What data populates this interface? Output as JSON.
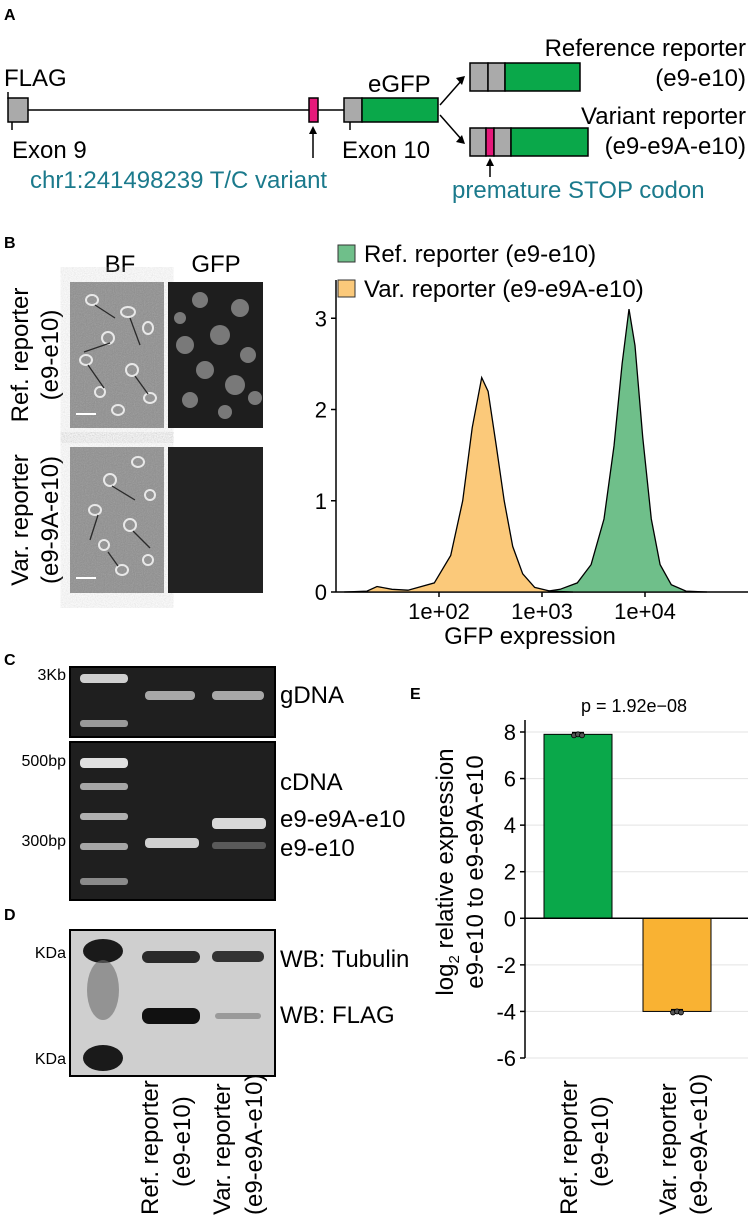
{
  "panels": {
    "a": {
      "letter": "A",
      "flag": "FLAG",
      "exon9": "Exon 9",
      "exon10": "Exon 10",
      "egfp": "eGFP",
      "variant_position": "chr1:241498239 T/C variant",
      "ref_reporter_line1": "Reference reporter",
      "ref_reporter_line2": "(e9-e10)",
      "var_reporter_line1": "Variant reporter",
      "var_reporter_line2": "(e9-e9A-e10)",
      "stop_label": "premature STOP codon"
    },
    "b": {
      "letter": "B",
      "col_bf": "BF",
      "col_gfp": "GFP",
      "row1_line1": "Ref. reporter",
      "row1_line2": "(e9-e10)",
      "row2_line1": "Var. reporter",
      "row2_line2": "(e9-9A-e10)"
    },
    "c": {
      "letter": "C",
      "marker_3kb": "3Kb",
      "marker_500bp": "500bp",
      "marker_300bp": "300bp",
      "gdna": "gDNA",
      "cdna": "cDNA",
      "band_var": "e9-e9A-e10",
      "band_ref": "e9-e10"
    },
    "d": {
      "letter": "D",
      "kda_top": "KDa",
      "kda_bottom": "KDa",
      "wb_tubulin": "WB: Tubulin",
      "wb_flag": "WB: FLAG",
      "lane1_line1": "Ref. reporter",
      "lane1_line2": "(e9-e10)",
      "lane2_line1": "Var. reporter",
      "lane2_line2": "(e9-e9A-e10)"
    },
    "e": {
      "letter": "E"
    }
  },
  "colors": {
    "green": "#0aa84a",
    "green_light": "#6fbf8a",
    "orange": "#f9b233",
    "orange_light": "#fbc97a",
    "magenta": "#e5197a",
    "teal": "#1b7a8c",
    "exon_gray": "#aaaaaa"
  },
  "chart_data": [
    {
      "type": "area",
      "panel": "B",
      "xlabel": "GFP expression",
      "xscale": "log",
      "xlim": [
        10,
        100000
      ],
      "ylim": [
        0,
        3.2
      ],
      "x_ticks": [
        "1e+02",
        "1e+03",
        "1e+04"
      ],
      "x_tick_values": [
        100,
        1000,
        10000
      ],
      "y_ticks": [
        "0",
        "1",
        "2",
        "3"
      ],
      "y_tick_values": [
        0,
        1,
        2,
        3
      ],
      "legend": "top",
      "series": [
        {
          "name": "Ref. reporter (e9-e10)",
          "color": "#6fbf8a",
          "points": [
            [
              1000,
              0
            ],
            [
              1500,
              0.03
            ],
            [
              2200,
              0.1
            ],
            [
              3000,
              0.3
            ],
            [
              4000,
              0.8
            ],
            [
              5000,
              1.6
            ],
            [
              6000,
              2.5
            ],
            [
              7000,
              3.1
            ],
            [
              8000,
              2.7
            ],
            [
              9500,
              1.7
            ],
            [
              11500,
              0.8
            ],
            [
              14000,
              0.3
            ],
            [
              18000,
              0.08
            ],
            [
              25000,
              0.01
            ],
            [
              40000,
              0
            ]
          ]
        },
        {
          "name": "Var. reporter (e9-e9A-e10)",
          "color": "#fbc97a",
          "points": [
            [
              12,
              0
            ],
            [
              20,
              0.01
            ],
            [
              25,
              0.06
            ],
            [
              35,
              0.03
            ],
            [
              50,
              0.02
            ],
            [
              90,
              0.1
            ],
            [
              130,
              0.4
            ],
            [
              170,
              1.0
            ],
            [
              210,
              1.8
            ],
            [
              260,
              2.35
            ],
            [
              300,
              2.2
            ],
            [
              360,
              1.6
            ],
            [
              430,
              1.0
            ],
            [
              520,
              0.5
            ],
            [
              650,
              0.2
            ],
            [
              850,
              0.05
            ],
            [
              1200,
              0.01
            ],
            [
              2000,
              0
            ]
          ]
        }
      ]
    },
    {
      "type": "bar",
      "panel": "E",
      "annotation": "p = 1.92e−08",
      "ylabel": "log2 relative expression e9-e10 to e9-e9A-e10",
      "ylim": [
        -6,
        8
      ],
      "y_ticks": [
        "-6",
        "-4",
        "-2",
        "0",
        "2",
        "4",
        "6",
        "8"
      ],
      "y_tick_values": [
        -6,
        -4,
        -2,
        0,
        2,
        4,
        6,
        8
      ],
      "grid": true,
      "categories": [
        "Ref. reporter (e9-e10)",
        "Var. reporter (e9-e9A-e10)"
      ],
      "values": [
        7.9,
        -4.0
      ],
      "errors": [
        0.08,
        0.08
      ],
      "colors": [
        "#0aa84a",
        "#f9b233"
      ]
    }
  ]
}
